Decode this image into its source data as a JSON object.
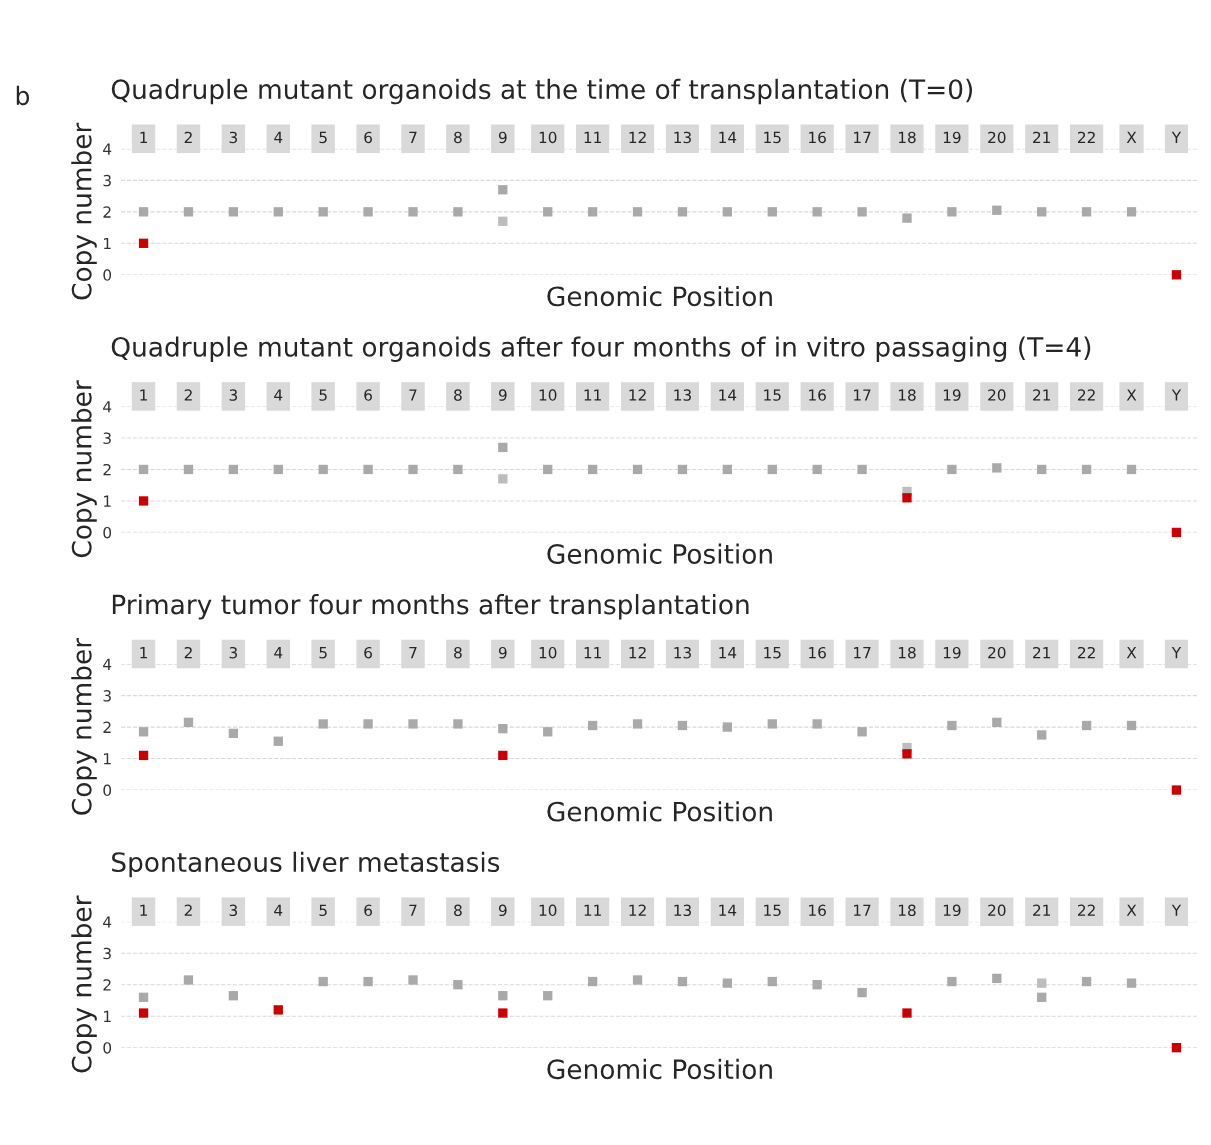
{
  "chart_data": [
    {
      "type": "scatter",
      "title": "Quadruple mutant organoids at the time of transplantation (T=0)",
      "marker": "square",
      "xlabel": "Genomic Position",
      "ylabel": "Copy number",
      "annotations": [
        "b"
      ],
      "categories": [
        "1",
        "2",
        "3",
        "4",
        "5",
        "6",
        "7",
        "8",
        "9",
        "10",
        "11",
        "12",
        "13",
        "14",
        "15",
        "16",
        "17",
        "18",
        "19",
        "20",
        "21",
        "22",
        "X",
        "Y"
      ],
      "ylim": [
        0,
        4
      ],
      "yticks": [
        0,
        1,
        2,
        3,
        4
      ],
      "grid": "y",
      "series": [
        {
          "color": "#a9a9a9",
          "values": [
            2,
            2,
            2,
            2,
            2,
            2,
            2,
            2,
            2.7,
            2,
            2,
            2,
            2,
            2,
            2,
            2,
            2,
            1.8,
            2,
            2.05,
            2,
            2,
            2,
            null
          ]
        },
        {
          "color": "#bdbdbd",
          "values": [
            null,
            null,
            null,
            null,
            null,
            null,
            null,
            null,
            1.7,
            null,
            null,
            null,
            null,
            null,
            null,
            null,
            null,
            null,
            null,
            null,
            null,
            null,
            null,
            null
          ]
        },
        {
          "color": "#cc0000",
          "values": [
            1,
            null,
            null,
            null,
            null,
            null,
            null,
            null,
            null,
            null,
            null,
            null,
            null,
            null,
            null,
            null,
            null,
            null,
            null,
            null,
            null,
            null,
            null,
            0
          ]
        }
      ]
    },
    {
      "type": "scatter",
      "title": "Quadruple mutant organoids after four months of in vitro passaging (T=4)",
      "marker": "square",
      "xlabel": "Genomic Position",
      "ylabel": "Copy number",
      "categories": [
        "1",
        "2",
        "3",
        "4",
        "5",
        "6",
        "7",
        "8",
        "9",
        "10",
        "11",
        "12",
        "13",
        "14",
        "15",
        "16",
        "17",
        "18",
        "19",
        "20",
        "21",
        "22",
        "X",
        "Y"
      ],
      "ylim": [
        0,
        4
      ],
      "yticks": [
        0,
        1,
        2,
        3,
        4
      ],
      "grid": "y",
      "series": [
        {
          "color": "#a9a9a9",
          "values": [
            2,
            2,
            2,
            2,
            2,
            2,
            2,
            2,
            2.7,
            2,
            2,
            2,
            2,
            2,
            2,
            2,
            2,
            null,
            2,
            2.05,
            2,
            2,
            2,
            null
          ]
        },
        {
          "color": "#bdbdbd",
          "values": [
            null,
            null,
            null,
            null,
            null,
            null,
            null,
            null,
            1.7,
            null,
            null,
            null,
            null,
            null,
            null,
            null,
            null,
            1.3,
            null,
            null,
            null,
            null,
            null,
            null
          ]
        },
        {
          "color": "#cc0000",
          "values": [
            1,
            null,
            null,
            null,
            null,
            null,
            null,
            null,
            null,
            null,
            null,
            null,
            null,
            null,
            null,
            null,
            null,
            1.1,
            null,
            null,
            null,
            null,
            null,
            0
          ]
        }
      ]
    },
    {
      "type": "scatter",
      "title": "Primary tumor four months after transplantation",
      "marker": "square",
      "xlabel": "Genomic Position",
      "ylabel": "Copy number",
      "categories": [
        "1",
        "2",
        "3",
        "4",
        "5",
        "6",
        "7",
        "8",
        "9",
        "10",
        "11",
        "12",
        "13",
        "14",
        "15",
        "16",
        "17",
        "18",
        "19",
        "20",
        "21",
        "22",
        "X",
        "Y"
      ],
      "ylim": [
        0,
        4
      ],
      "yticks": [
        0,
        1,
        2,
        3,
        4
      ],
      "grid": "y",
      "series": [
        {
          "color": "#a9a9a9",
          "values": [
            1.85,
            2.15,
            1.8,
            1.55,
            2.1,
            2.1,
            2.1,
            2.1,
            1.95,
            1.85,
            2.05,
            2.1,
            2.05,
            2,
            2.1,
            2.1,
            1.85,
            null,
            2.05,
            2.15,
            1.75,
            2.05,
            2.05,
            null
          ]
        },
        {
          "color": "#bdbdbd",
          "values": [
            null,
            null,
            null,
            null,
            null,
            null,
            null,
            null,
            null,
            null,
            null,
            null,
            null,
            null,
            null,
            null,
            null,
            1.35,
            null,
            null,
            null,
            null,
            null,
            null
          ]
        },
        {
          "color": "#cc0000",
          "values": [
            1.1,
            null,
            null,
            null,
            null,
            null,
            null,
            null,
            1.1,
            null,
            null,
            null,
            null,
            null,
            null,
            null,
            null,
            1.15,
            null,
            null,
            null,
            null,
            null,
            0
          ]
        }
      ]
    },
    {
      "type": "scatter",
      "title": "Spontaneous liver metastasis",
      "marker": "square",
      "xlabel": "Genomic Position",
      "ylabel": "Copy number",
      "categories": [
        "1",
        "2",
        "3",
        "4",
        "5",
        "6",
        "7",
        "8",
        "9",
        "10",
        "11",
        "12",
        "13",
        "14",
        "15",
        "16",
        "17",
        "18",
        "19",
        "20",
        "21",
        "22",
        "X",
        "Y"
      ],
      "ylim": [
        0,
        4
      ],
      "yticks": [
        0,
        1,
        2,
        3,
        4
      ],
      "grid": "y",
      "series": [
        {
          "color": "#a9a9a9",
          "values": [
            1.6,
            2.15,
            1.65,
            null,
            2.1,
            2.1,
            2.15,
            2,
            1.65,
            1.65,
            2.1,
            2.15,
            2.1,
            2.05,
            2.1,
            2,
            1.75,
            null,
            2.1,
            2.2,
            1.6,
            2.1,
            2.05,
            null
          ]
        },
        {
          "color": "#bdbdbd",
          "values": [
            null,
            null,
            null,
            null,
            null,
            null,
            null,
            null,
            null,
            null,
            null,
            null,
            null,
            null,
            null,
            null,
            null,
            null,
            null,
            null,
            2.05,
            null,
            null,
            null
          ]
        },
        {
          "color": "#cc0000",
          "values": [
            1.1,
            null,
            null,
            1.2,
            null,
            null,
            null,
            null,
            1.1,
            null,
            null,
            null,
            null,
            null,
            null,
            null,
            null,
            1.1,
            null,
            null,
            null,
            null,
            null,
            0
          ]
        }
      ]
    }
  ]
}
